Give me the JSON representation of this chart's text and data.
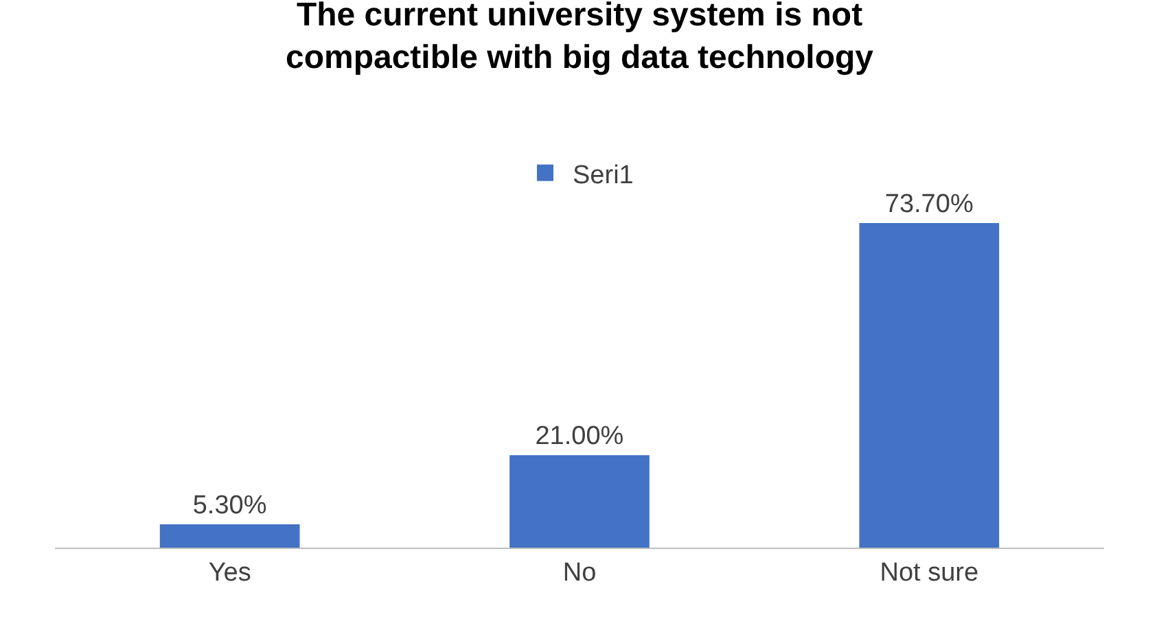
{
  "chart_data": {
    "type": "bar",
    "title": "The current university system is not compactible with big data technology",
    "categories": [
      "Yes",
      "No",
      "Not sure"
    ],
    "series": [
      {
        "name": "Seri1",
        "color": "#4472c4",
        "values": [
          5.3,
          21.0,
          73.7
        ],
        "value_labels": [
          "5.30%",
          "21.00%",
          "73.70%"
        ]
      }
    ],
    "legend": "top",
    "grid": false
  }
}
